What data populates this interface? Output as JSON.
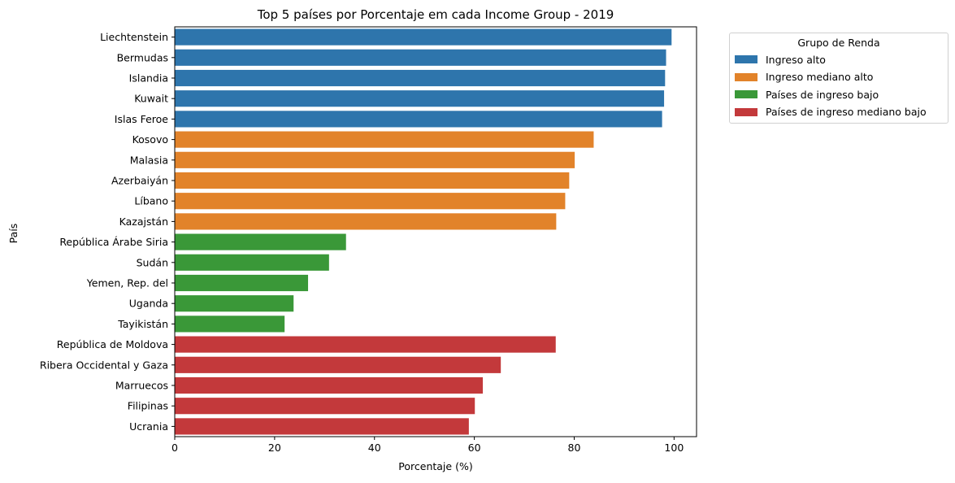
{
  "chart_data": {
    "type": "bar",
    "orientation": "horizontal",
    "title": "Top 5 países por Porcentaje em cada Income Group - 2019",
    "xlabel": "Porcentaje (%)",
    "ylabel": "País",
    "xlim": [
      0,
      104.5
    ],
    "xticks": [
      "0",
      "20",
      "40",
      "60",
      "80",
      "100"
    ],
    "grid": false,
    "legend": {
      "title": "Grupo de Renda",
      "placement": "outside-right",
      "entries": [
        {
          "label": "Ingreso alto",
          "color": "#2e75ac"
        },
        {
          "label": "Ingreso mediano alto",
          "color": "#e2832a"
        },
        {
          "label": "Países de ingreso bajo",
          "color": "#3a9838"
        },
        {
          "label": "Países de ingreso mediano bajo",
          "color": "#c3393b"
        }
      ]
    },
    "bars": [
      {
        "category": "Liechtenstein",
        "value": 99.5,
        "group": 0
      },
      {
        "category": "Bermudas",
        "value": 98.4,
        "group": 0
      },
      {
        "category": "Islandia",
        "value": 98.2,
        "group": 0
      },
      {
        "category": "Kuwait",
        "value": 98.0,
        "group": 0
      },
      {
        "category": "Islas Feroe",
        "value": 97.6,
        "group": 0
      },
      {
        "category": "Kosovo",
        "value": 83.9,
        "group": 1
      },
      {
        "category": "Malasia",
        "value": 80.1,
        "group": 1
      },
      {
        "category": "Azerbaiyán",
        "value": 79.0,
        "group": 1
      },
      {
        "category": "Líbano",
        "value": 78.2,
        "group": 1
      },
      {
        "category": "Kazajstán",
        "value": 76.4,
        "group": 1
      },
      {
        "category": "República Árabe Siria",
        "value": 34.3,
        "group": 2
      },
      {
        "category": "Sudán",
        "value": 30.9,
        "group": 2
      },
      {
        "category": "Yemen, Rep. del",
        "value": 26.7,
        "group": 2
      },
      {
        "category": "Uganda",
        "value": 23.8,
        "group": 2
      },
      {
        "category": "Tayikistán",
        "value": 22.0,
        "group": 2
      },
      {
        "category": "República de Moldova",
        "value": 76.3,
        "group": 3
      },
      {
        "category": "Ribera Occidental y Gaza",
        "value": 65.3,
        "group": 3
      },
      {
        "category": "Marruecos",
        "value": 61.7,
        "group": 3
      },
      {
        "category": "Filipinas",
        "value": 60.1,
        "group": 3
      },
      {
        "category": "Ucrania",
        "value": 58.9,
        "group": 3
      }
    ]
  }
}
